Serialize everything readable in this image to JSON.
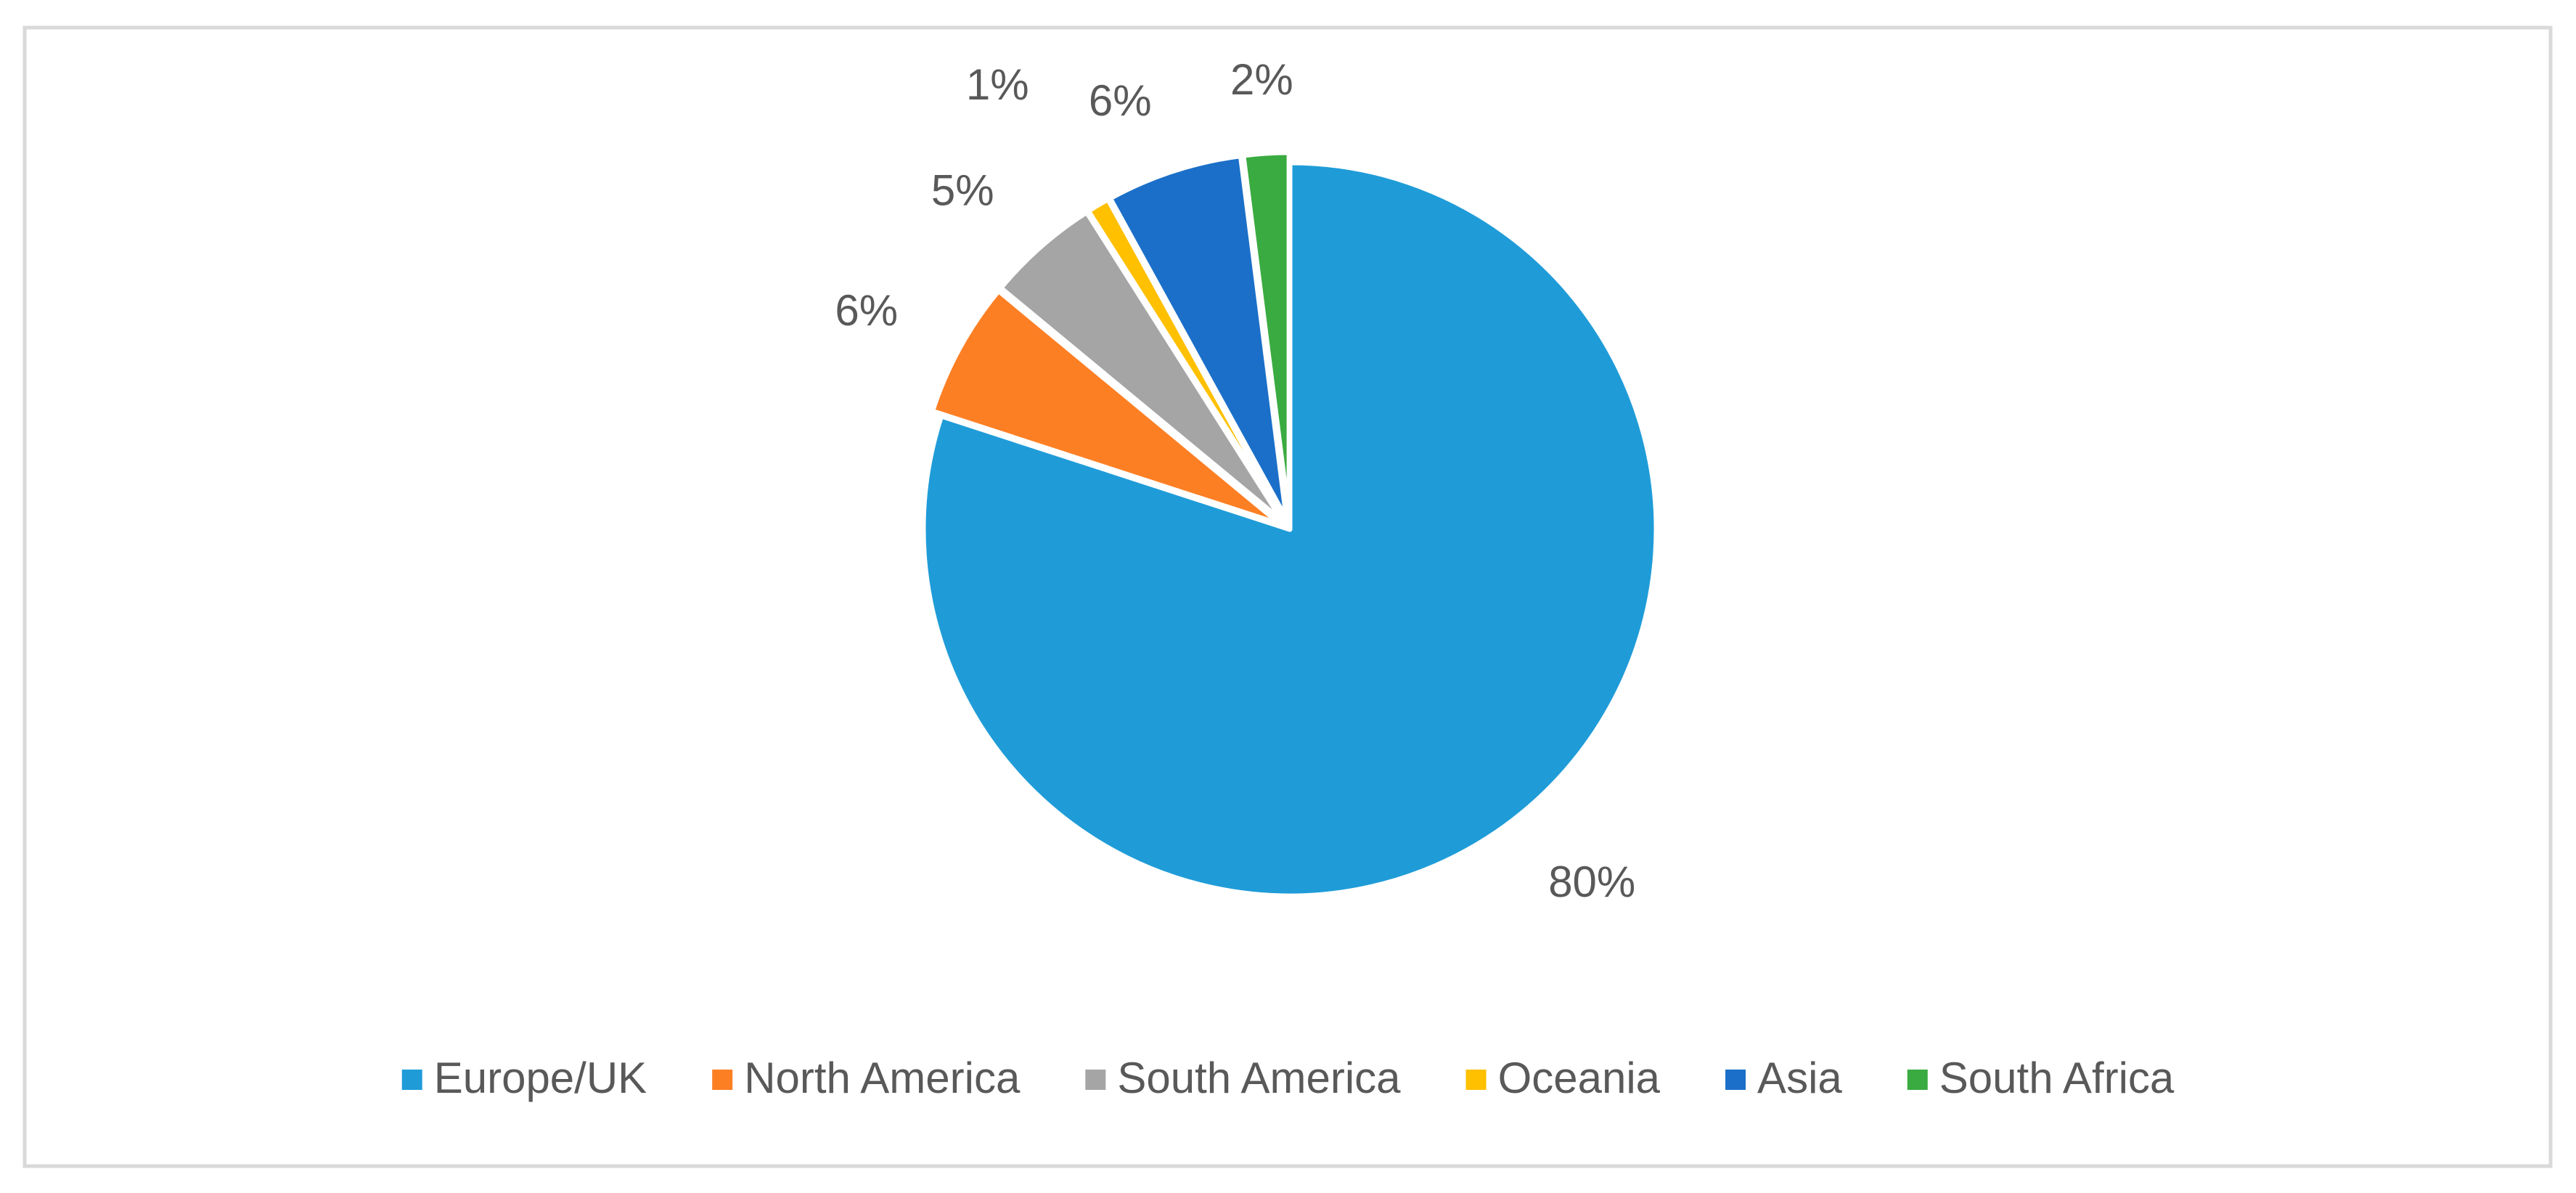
{
  "chart_data": {
    "type": "pie",
    "categories": [
      "Europe/UK",
      "North America",
      "South America",
      "Oceania",
      "Asia",
      "South Africa"
    ],
    "values": [
      80,
      6,
      5,
      1,
      6,
      2
    ],
    "value_labels": [
      "80%",
      "6%",
      "5%",
      "1%",
      "6%",
      "2%"
    ],
    "colors": [
      "#1f9cd8",
      "#fd7f24",
      "#a5a5a5",
      "#ffc000",
      "#1b6fc8",
      "#3aab41"
    ],
    "legend": "bottom"
  }
}
